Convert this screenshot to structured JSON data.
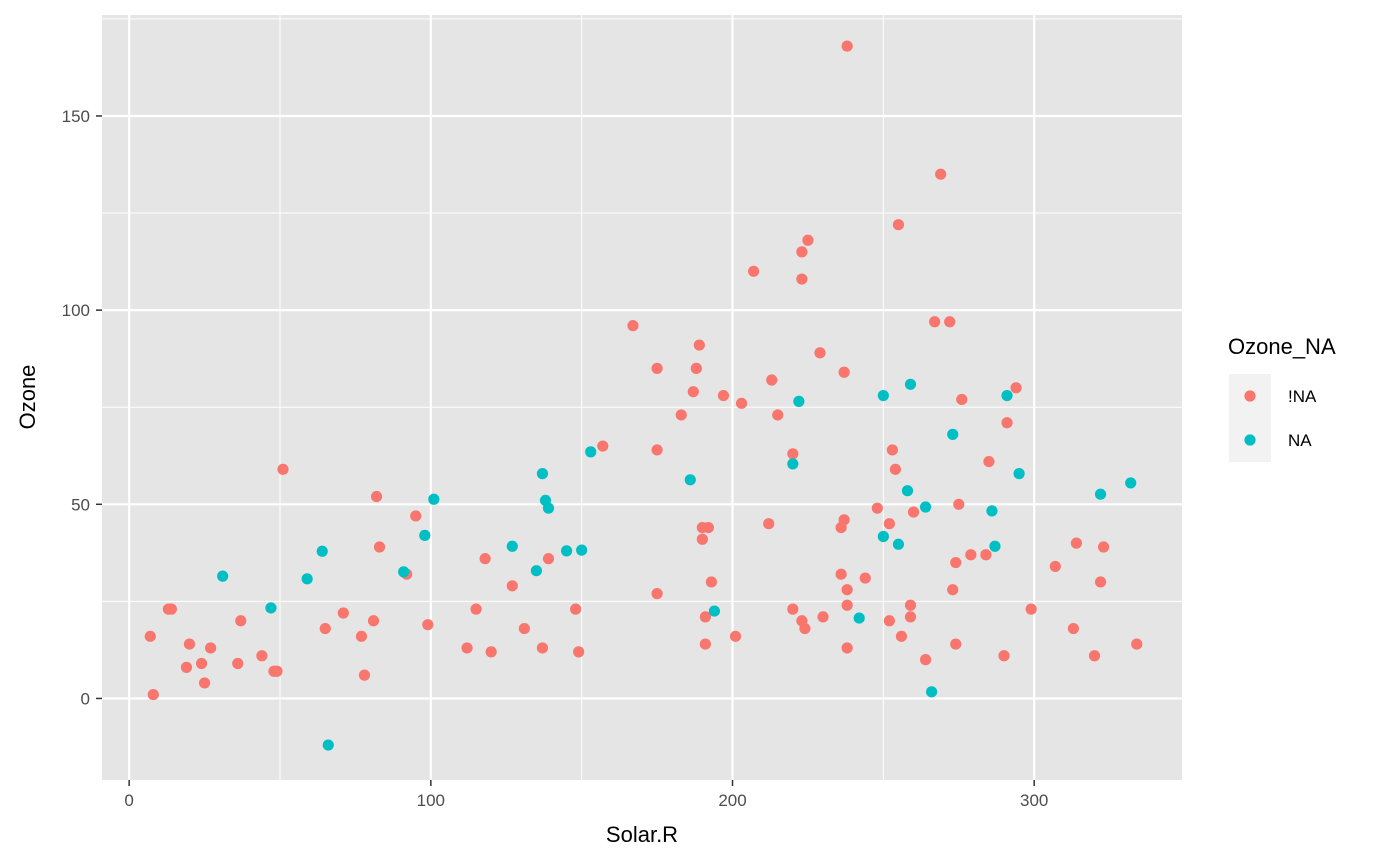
{
  "chart_data": {
    "type": "scatter",
    "xlabel": "Solar.R",
    "ylabel": "Ozone",
    "xlim": [
      -9,
      349
    ],
    "ylim": [
      -21,
      176
    ],
    "x_ticks": [
      0,
      100,
      200,
      300
    ],
    "x_tick_labels": [
      "0",
      "100",
      "200",
      "300"
    ],
    "y_ticks": [
      0,
      50,
      100,
      150
    ],
    "y_tick_labels": [
      "0",
      "50",
      "100",
      "150"
    ],
    "grid": true,
    "background": "#e5e5e5",
    "legend": {
      "title": "Ozone_NA",
      "position": "right",
      "entries": [
        {
          "label": "!NA",
          "color": "#f8766d"
        },
        {
          "label": "NA",
          "color": "#00bfc4"
        }
      ]
    },
    "series": [
      {
        "name": "!NA",
        "color": "#f8766d",
        "points": [
          [
            7,
            16
          ],
          [
            8,
            1
          ],
          [
            13,
            23
          ],
          [
            14,
            23
          ],
          [
            19,
            8
          ],
          [
            20,
            14
          ],
          [
            24,
            9
          ],
          [
            25,
            4
          ],
          [
            27,
            13
          ],
          [
            36,
            9
          ],
          [
            37,
            20
          ],
          [
            44,
            11
          ],
          [
            48,
            7
          ],
          [
            49,
            7
          ],
          [
            51,
            59
          ],
          [
            65,
            18
          ],
          [
            71,
            22
          ],
          [
            77,
            16
          ],
          [
            78,
            6
          ],
          [
            81,
            20
          ],
          [
            82,
            52
          ],
          [
            83,
            39
          ],
          [
            92,
            32
          ],
          [
            95,
            47
          ],
          [
            99,
            19
          ],
          [
            112,
            13
          ],
          [
            115,
            23
          ],
          [
            118,
            36
          ],
          [
            120,
            12
          ],
          [
            127,
            29
          ],
          [
            131,
            18
          ],
          [
            137,
            13
          ],
          [
            139,
            36
          ],
          [
            148,
            23
          ],
          [
            149,
            12
          ],
          [
            157,
            65
          ],
          [
            167,
            96
          ],
          [
            175,
            85
          ],
          [
            175,
            64
          ],
          [
            175,
            27
          ],
          [
            183,
            73
          ],
          [
            187,
            79
          ],
          [
            188,
            85
          ],
          [
            189,
            91
          ],
          [
            190,
            44
          ],
          [
            190,
            41
          ],
          [
            191,
            21
          ],
          [
            191,
            14
          ],
          [
            192,
            44
          ],
          [
            193,
            30
          ],
          [
            197,
            78
          ],
          [
            201,
            16
          ],
          [
            203,
            76
          ],
          [
            207,
            110
          ],
          [
            212,
            45
          ],
          [
            213,
            82
          ],
          [
            215,
            73
          ],
          [
            220,
            63
          ],
          [
            220,
            23
          ],
          [
            223,
            115
          ],
          [
            223,
            108
          ],
          [
            223,
            20
          ],
          [
            224,
            18
          ],
          [
            225,
            118
          ],
          [
            229,
            89
          ],
          [
            230,
            21
          ],
          [
            236,
            44
          ],
          [
            236,
            32
          ],
          [
            237,
            84
          ],
          [
            237,
            46
          ],
          [
            238,
            168
          ],
          [
            238,
            28
          ],
          [
            238,
            24
          ],
          [
            238,
            13
          ],
          [
            244,
            31
          ],
          [
            248,
            49
          ],
          [
            252,
            45
          ],
          [
            252,
            20
          ],
          [
            253,
            64
          ],
          [
            254,
            59
          ],
          [
            255,
            122
          ],
          [
            256,
            16
          ],
          [
            259,
            24
          ],
          [
            259,
            21
          ],
          [
            260,
            48
          ],
          [
            264,
            10
          ],
          [
            267,
            97
          ],
          [
            269,
            135
          ],
          [
            272,
            97
          ],
          [
            273,
            28
          ],
          [
            274,
            35
          ],
          [
            274,
            14
          ],
          [
            275,
            50
          ],
          [
            276,
            77
          ],
          [
            279,
            37
          ],
          [
            284,
            37
          ],
          [
            285,
            61
          ],
          [
            290,
            11
          ],
          [
            291,
            71
          ],
          [
            294,
            80
          ],
          [
            299,
            23
          ],
          [
            307,
            34
          ],
          [
            313,
            18
          ],
          [
            314,
            40
          ],
          [
            320,
            11
          ],
          [
            322,
            30
          ],
          [
            323,
            39
          ],
          [
            334,
            14
          ]
        ]
      },
      {
        "name": "NA",
        "color": "#00bfc4",
        "points": [
          [
            31,
            31.5
          ],
          [
            47,
            23.3
          ],
          [
            59,
            30.8
          ],
          [
            64,
            37.9
          ],
          [
            66,
            -12
          ],
          [
            91,
            32.6
          ],
          [
            98,
            42
          ],
          [
            101,
            51.3
          ],
          [
            127,
            39.2
          ],
          [
            135,
            32.9
          ],
          [
            137,
            57.9
          ],
          [
            138,
            51
          ],
          [
            139,
            49
          ],
          [
            145,
            38
          ],
          [
            150,
            38.2
          ],
          [
            153,
            63.5
          ],
          [
            186,
            56.3
          ],
          [
            194,
            22.5
          ],
          [
            220,
            60.4
          ],
          [
            222,
            76.5
          ],
          [
            242,
            20.7
          ],
          [
            250,
            78
          ],
          [
            250,
            41.7
          ],
          [
            255,
            39.7
          ],
          [
            258,
            53.5
          ],
          [
            259,
            80.9
          ],
          [
            264,
            49.3
          ],
          [
            266,
            1.7
          ],
          [
            273,
            68
          ],
          [
            286,
            48.3
          ],
          [
            287,
            39.2
          ],
          [
            291,
            78
          ],
          [
            295,
            57.9
          ],
          [
            322,
            52.6
          ],
          [
            332,
            55.5
          ]
        ]
      }
    ]
  }
}
